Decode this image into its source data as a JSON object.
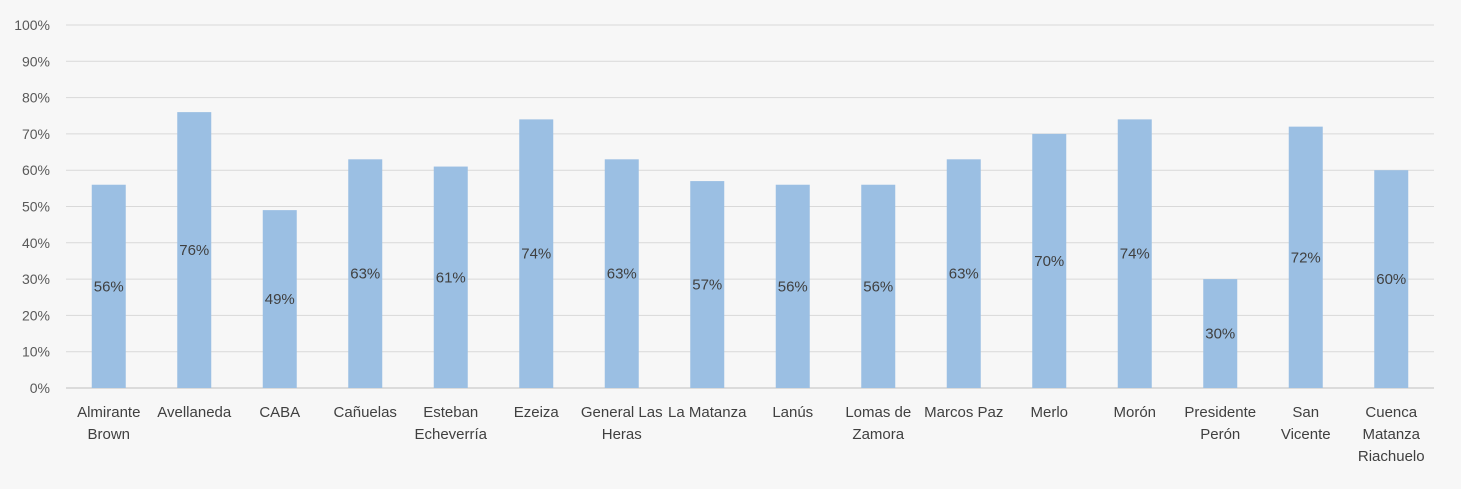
{
  "chart_data": {
    "type": "bar",
    "title": "",
    "xlabel": "",
    "ylabel": "",
    "ylim": [
      0,
      100
    ],
    "yticks": [
      "0%",
      "10%",
      "20%",
      "30%",
      "40%",
      "50%",
      "60%",
      "70%",
      "80%",
      "90%",
      "100%"
    ],
    "grid": true,
    "legend": "none",
    "bar_color": "#9bbfe3",
    "categories": [
      [
        "Almirante",
        "Brown"
      ],
      [
        "Avellaneda"
      ],
      [
        "CABA"
      ],
      [
        "Cañuelas"
      ],
      [
        "Esteban",
        "Echeverría"
      ],
      [
        "Ezeiza"
      ],
      [
        "General Las",
        "Heras"
      ],
      [
        "La Matanza"
      ],
      [
        "Lanús"
      ],
      [
        "Lomas de",
        "Zamora"
      ],
      [
        "Marcos Paz"
      ],
      [
        "Merlo"
      ],
      [
        "Morón"
      ],
      [
        "Presidente",
        "Perón"
      ],
      [
        "San",
        "Vicente"
      ],
      [
        "Cuenca",
        "Matanza",
        "Riachuelo"
      ]
    ],
    "values": [
      56,
      76,
      49,
      63,
      61,
      74,
      63,
      57,
      56,
      56,
      63,
      70,
      74,
      30,
      72,
      60
    ],
    "data_labels": [
      "56%",
      "76%",
      "49%",
      "63%",
      "61%",
      "74%",
      "63%",
      "57%",
      "56%",
      "56%",
      "63%",
      "70%",
      "74%",
      "30%",
      "72%",
      "60%"
    ]
  }
}
